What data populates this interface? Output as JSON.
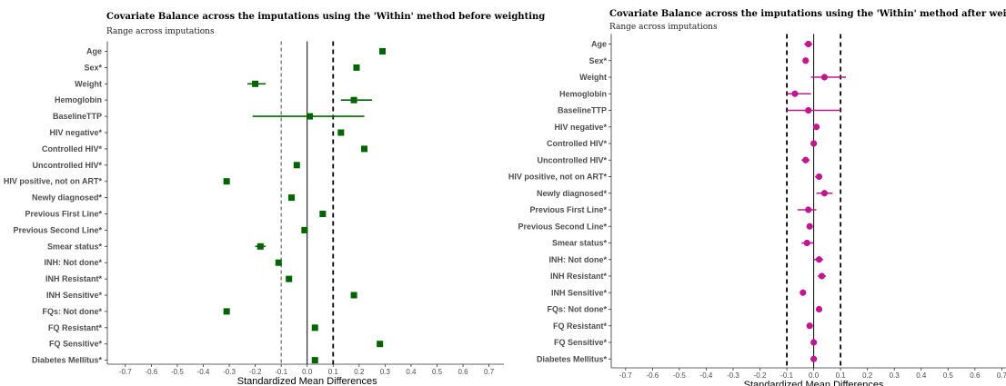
{
  "chart_data": [
    {
      "type": "scatter",
      "title": "Covariate Balance across the imputations using the 'Within' method before weighting",
      "subtitle": "Range across imputations",
      "xlabel": "Standardized Mean Differences",
      "ylabel": "",
      "xlim": [
        -0.78,
        0.77
      ],
      "xticks": [
        "-0.7",
        "-0.6",
        "-0.5",
        "-0.4",
        "-0.3",
        "-0.2",
        "-0.1",
        "0.0",
        "0.1",
        "0.2",
        "0.3",
        "0.4",
        "0.5",
        "0.6",
        "0.7"
      ],
      "thresholds": [
        -0.1,
        0.1
      ],
      "marker": "square",
      "color": "#006400",
      "grid": false,
      "categories": [
        "Age",
        "Sex*",
        "Weight",
        "Hemoglobin",
        "BaselineTTP",
        "HIV negative*",
        "Controlled HIV*",
        "Uncontrolled HIV*",
        "HIV positive, not on ART*",
        "Newly diagnosed*",
        "Previous First Line*",
        "Previous Second Line*",
        "Smear status*",
        "INH: Not done*",
        "INH Resistant*",
        "INH Sensitive*",
        "FQs: Not done*",
        "FQ Resistant*",
        "FQ Sensitive*",
        "Diabetes Mellitus*"
      ],
      "values": [
        0.29,
        0.19,
        -0.2,
        0.18,
        0.01,
        0.13,
        0.22,
        -0.04,
        -0.31,
        -0.06,
        0.06,
        -0.01,
        -0.18,
        -0.11,
        -0.07,
        0.18,
        -0.31,
        0.03,
        0.28,
        0.03
      ],
      "lower": [
        0.29,
        0.19,
        -0.23,
        0.13,
        -0.21,
        0.13,
        0.215,
        -0.05,
        -0.31,
        -0.06,
        0.06,
        -0.01,
        -0.2,
        -0.11,
        -0.07,
        0.18,
        -0.31,
        0.03,
        0.28,
        0.03
      ],
      "upper": [
        0.29,
        0.19,
        -0.16,
        0.25,
        0.22,
        0.13,
        0.23,
        -0.03,
        -0.31,
        -0.06,
        0.06,
        -0.01,
        -0.16,
        -0.11,
        -0.07,
        0.18,
        -0.31,
        0.03,
        0.28,
        0.03
      ]
    },
    {
      "type": "scatter",
      "title": "Covariate Balance across the imputations using the 'Within' method after weighting",
      "subtitle": "Range across imputations",
      "xlabel": "Standardized Mean Differences",
      "ylabel": "",
      "xlim": [
        -0.78,
        0.72
      ],
      "xticks": [
        "-0.7",
        "-0.6",
        "-0.5",
        "-0.4",
        "-0.3",
        "-0.2",
        "-0.1",
        "0.0",
        "0.1",
        "0.2",
        "0.3",
        "0.4",
        "0.5",
        "0.6",
        "0.7"
      ],
      "thresholds": [
        -0.1,
        0.1
      ],
      "marker": "circle",
      "color": "#C0168F",
      "grid": false,
      "categories": [
        "Age",
        "Sex*",
        "Weight",
        "Hemoglobin",
        "BaselineTTP",
        "HIV negative*",
        "Controlled HIV*",
        "Uncontrolled HIV*",
        "HIV positive, not on ART*",
        "Newly diagnosed*",
        "Previous First Line*",
        "Previous Second Line*",
        "Smear status*",
        "INH: Not done*",
        "INH Resistant*",
        "INH Sensitive*",
        "FQs: Not done*",
        "FQ Resistant*",
        "FQ Sensitive*",
        "Diabetes Mellitus*"
      ],
      "values": [
        -0.02,
        -0.03,
        0.04,
        -0.07,
        -0.02,
        0.01,
        0.0,
        -0.03,
        0.02,
        0.04,
        -0.02,
        -0.015,
        -0.025,
        0.02,
        0.03,
        -0.04,
        0.02,
        -0.015,
        0.0,
        0.0
      ],
      "lower": [
        -0.035,
        -0.04,
        -0.01,
        -0.1,
        -0.1,
        0.005,
        -0.005,
        -0.045,
        0.005,
        0.01,
        -0.06,
        -0.02,
        -0.045,
        0.0,
        0.015,
        -0.05,
        0.01,
        -0.02,
        -0.005,
        -0.005
      ],
      "upper": [
        -0.005,
        -0.02,
        0.12,
        -0.01,
        0.1,
        0.015,
        0.005,
        -0.015,
        0.03,
        0.07,
        0.01,
        -0.01,
        0.0,
        0.035,
        0.045,
        -0.03,
        0.03,
        -0.01,
        0.005,
        0.005
      ]
    }
  ]
}
